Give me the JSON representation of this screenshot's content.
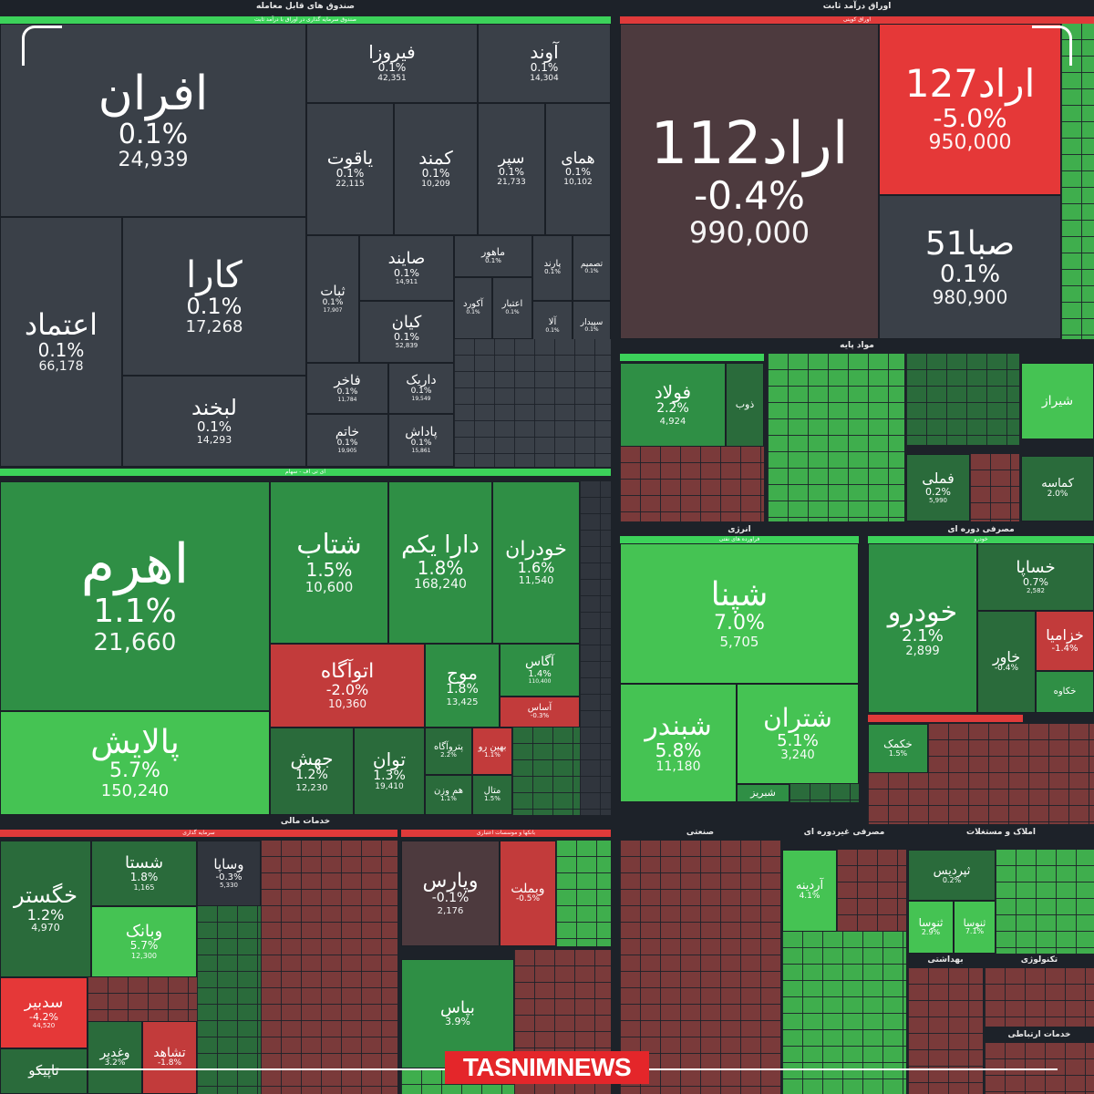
{
  "sections": {
    "funds": {
      "title": "صندوق های قابل معامله",
      "sub": "صندوق سرمایه گذاری در اوراق با درآمد ثابت"
    },
    "bonds": {
      "title": "اوراق درآمد ثابت",
      "sub": "اوراق کوپنی"
    },
    "etf": {
      "title": "ای تی اف - سهام"
    },
    "base": {
      "title": "مواد پایه"
    },
    "energy": {
      "title": "انرژی",
      "sub": "فراورده های نفتی"
    },
    "consumer": {
      "title": "مصرفی دوره ای",
      "sub": "خودرو"
    },
    "financial": {
      "title": "خدمات مالی",
      "sub1": "سرمایه گذاری",
      "sub2": "بانکها و موسسات اعتباری"
    },
    "industrial": {
      "title": "صنعتی"
    },
    "nondurable": {
      "title": "مصرفی غیردوره ای"
    },
    "realestate": {
      "title": "املاک و مستغلات"
    },
    "health": {
      "title": "بهداشتی"
    },
    "tech": {
      "title": "تکنولوژی"
    },
    "telecom": {
      "title": "خدمات ارتباطی"
    }
  },
  "tiles": {
    "afran": {
      "name": "افران",
      "pct": "0.1%",
      "val": "24,939"
    },
    "firouza": {
      "name": "فیروزا",
      "pct": "0.1%",
      "val": "42,351"
    },
    "avand": {
      "name": "آوند",
      "pct": "0.1%",
      "val": "14,304"
    },
    "yaghut": {
      "name": "یاقوت",
      "pct": "0.1%",
      "val": "22,115"
    },
    "kamand": {
      "name": "کمند",
      "pct": "0.1%",
      "val": "10,209"
    },
    "separ": {
      "name": "سپر",
      "pct": "0.1%",
      "val": "21,733"
    },
    "homay": {
      "name": "همای",
      "pct": "0.1%",
      "val": "10,102"
    },
    "etemad": {
      "name": "اعتماد",
      "pct": "0.1%",
      "val": "66,178"
    },
    "kara": {
      "name": "کارا",
      "pct": "0.1%",
      "val": "17,268"
    },
    "labkhand": {
      "name": "لبخند",
      "pct": "0.1%",
      "val": "14,293"
    },
    "sabat": {
      "name": "ثبات",
      "pct": "0.1%",
      "val": "17,907"
    },
    "sayend": {
      "name": "صایند",
      "pct": "0.1%",
      "val": "14,911"
    },
    "kian": {
      "name": "کیان",
      "pct": "0.1%",
      "val": "52,839"
    },
    "fakher": {
      "name": "فاخر",
      "pct": "0.1%",
      "val": "11,784"
    },
    "darik": {
      "name": "داریک",
      "pct": "0.1%",
      "val": "19,549"
    },
    "khatam": {
      "name": "خاتم",
      "pct": "0.1%",
      "val": "19,905"
    },
    "padash": {
      "name": "پاداش",
      "pct": "0.1%",
      "val": "15,861"
    },
    "mahour": {
      "name": "ماهور",
      "pct": "0.1%",
      "val": ""
    },
    "parand": {
      "name": "پارند",
      "pct": "0.1%",
      "val": ""
    },
    "tasmim": {
      "name": "تصمیم",
      "pct": "0.1%",
      "val": ""
    },
    "akord": {
      "name": "آکورد",
      "pct": "0.1%",
      "val": ""
    },
    "etebar": {
      "name": "اعتبار",
      "pct": "0.1%",
      "val": ""
    },
    "ala": {
      "name": "آلا",
      "pct": "0.1%",
      "val": ""
    },
    "sepidar": {
      "name": "سپیدار",
      "pct": "0.1%",
      "val": ""
    },
    "arad112": {
      "name": "اراد112",
      "pct": "-0.4%",
      "val": "990,000"
    },
    "arad127": {
      "name": "اراد127",
      "pct": "-5.0%",
      "val": "950,000"
    },
    "saba51": {
      "name": "صبا51",
      "pct": "0.1%",
      "val": "980,900"
    },
    "ahrom": {
      "name": "اهرم",
      "pct": "1.1%",
      "val": "21,660"
    },
    "shetab": {
      "name": "شتاب",
      "pct": "1.5%",
      "val": "10,600"
    },
    "daraykom": {
      "name": "دارا یکم",
      "pct": "1.8%",
      "val": "168,240"
    },
    "khodran": {
      "name": "خودران",
      "pct": "1.6%",
      "val": "11,540"
    },
    "palayesh": {
      "name": "پالایش",
      "pct": "5.7%",
      "val": "150,240"
    },
    "otogah": {
      "name": "اتوآگاه",
      "pct": "-2.0%",
      "val": "10,360"
    },
    "mowj": {
      "name": "موج",
      "pct": "1.8%",
      "val": "13,425"
    },
    "agas": {
      "name": "آگاس",
      "pct": "1.4%",
      "val": "110,400"
    },
    "asas": {
      "name": "آساس",
      "pct": "-0.3%",
      "val": ""
    },
    "jahesh": {
      "name": "جهش",
      "pct": "1.2%",
      "val": "12,230"
    },
    "tavan": {
      "name": "توان",
      "pct": "1.3%",
      "val": "19,410"
    },
    "petroagah": {
      "name": "پتروآگاه",
      "pct": "2.2%",
      "val": ""
    },
    "behinro": {
      "name": "بهین رو",
      "pct": "1.1%",
      "val": ""
    },
    "hamvazn": {
      "name": "هم وزن",
      "pct": "1.1%",
      "val": ""
    },
    "metal": {
      "name": "متال",
      "pct": "1.5%",
      "val": ""
    },
    "foulad": {
      "name": "فولاد",
      "pct": "2.2%",
      "val": "4,924"
    },
    "zob": {
      "name": "ذوب",
      "pct": "",
      "val": ""
    },
    "famli": {
      "name": "فملی",
      "pct": "0.2%",
      "val": "5,990"
    },
    "shiraz": {
      "name": "شیراز",
      "pct": "",
      "val": ""
    },
    "kamaseh": {
      "name": "کماسه",
      "pct": "2.0%",
      "val": ""
    },
    "shpna": {
      "name": "شپنا",
      "pct": "7.0%",
      "val": "5,705"
    },
    "shbandar": {
      "name": "شبندر",
      "pct": "5.8%",
      "val": "11,180"
    },
    "shtran": {
      "name": "شتران",
      "pct": "5.1%",
      "val": "3,240"
    },
    "shbriz": {
      "name": "شبریز",
      "pct": "",
      "val": ""
    },
    "khodro": {
      "name": "خودرو",
      "pct": "2.1%",
      "val": "2,899"
    },
    "khsapa": {
      "name": "خساپا",
      "pct": "0.7%",
      "val": "2,582"
    },
    "khavar": {
      "name": "خاور",
      "pct": "-0.4%",
      "val": ""
    },
    "khazamia": {
      "name": "خزامیا",
      "pct": "-1.4%",
      "val": ""
    },
    "khakkeh": {
      "name": "خکاوه",
      "pct": "",
      "val": ""
    },
    "khkamak": {
      "name": "خکمک",
      "pct": "1.5%",
      "val": ""
    },
    "khgostar": {
      "name": "خگستر",
      "pct": "1.2%",
      "val": "4,970"
    },
    "shasta": {
      "name": "شستا",
      "pct": "1.8%",
      "val": "1,165"
    },
    "vasapa": {
      "name": "وساپا",
      "pct": "-0.3%",
      "val": "5,330"
    },
    "vbank": {
      "name": "وبانک",
      "pct": "5.7%",
      "val": "12,300"
    },
    "sadir": {
      "name": "سدبیر",
      "pct": "-4.2%",
      "val": "44,520"
    },
    "vghadir": {
      "name": "وغدیر",
      "pct": "3.2%",
      "val": ""
    },
    "teshahed": {
      "name": "تشاهد",
      "pct": "-1.8%",
      "val": ""
    },
    "tapiko": {
      "name": "تاپیکو",
      "pct": "",
      "val": ""
    },
    "vpars": {
      "name": "وپارس",
      "pct": "-0.1%",
      "val": "2,176"
    },
    "vmellat": {
      "name": "وبملت",
      "pct": "-0.5%",
      "val": ""
    },
    "bpas": {
      "name": "بپاس",
      "pct": "3.9%",
      "val": ""
    },
    "ardineh": {
      "name": "آردینه",
      "pct": "4.1%",
      "val": ""
    },
    "thirdis": {
      "name": "ثپردیس",
      "pct": "0.2%",
      "val": ""
    },
    "thnosa": {
      "name": "ثنوسا",
      "pct": "2.9%",
      "val": ""
    },
    "thnosa2": {
      "name": "ثنوسا",
      "pct": "7.1%",
      "val": ""
    }
  },
  "brand": "TASNIMNEWS",
  "colors": {
    "positive": "#45c353",
    "positive_dark": "#2a6b3b",
    "negative": "#c23b3b",
    "negative_bright": "#e53838",
    "neutral": "#3a4048",
    "header_bar": "#3cd25a",
    "header_bar_red": "#e03a3a"
  }
}
